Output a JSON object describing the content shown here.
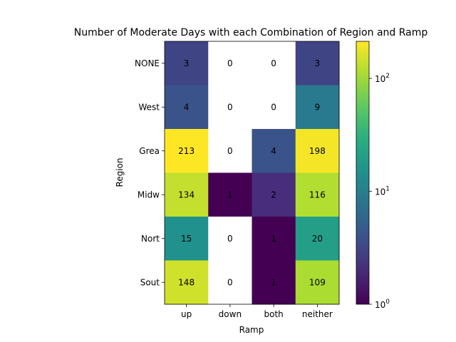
{
  "chart_data": {
    "type": "heatmap",
    "title": "Number of Moderate Days with each Combination of Region and Ramp",
    "xlabel": "Ramp",
    "ylabel": "Region",
    "x_categories": [
      "up",
      "down",
      "both",
      "neither"
    ],
    "y_categories": [
      "NONE",
      "West",
      "Grea",
      "Midw",
      "Nort",
      "Sout"
    ],
    "values": [
      [
        3,
        0,
        0,
        3
      ],
      [
        4,
        0,
        0,
        9
      ],
      [
        213,
        0,
        4,
        198
      ],
      [
        134,
        1,
        2,
        116
      ],
      [
        15,
        0,
        1,
        20
      ],
      [
        148,
        0,
        1,
        109
      ]
    ],
    "colorscale": "viridis",
    "color_scale_type": "log",
    "color_range": [
      1,
      213
    ],
    "colorbar": {
      "ticks": [
        {
          "value": 1,
          "label": "10",
          "exp": "0"
        },
        {
          "value": 10,
          "label": "10",
          "exp": "1"
        },
        {
          "value": 100,
          "label": "10",
          "exp": "2"
        }
      ]
    },
    "zero_color": "#ffffff",
    "grid": false
  }
}
